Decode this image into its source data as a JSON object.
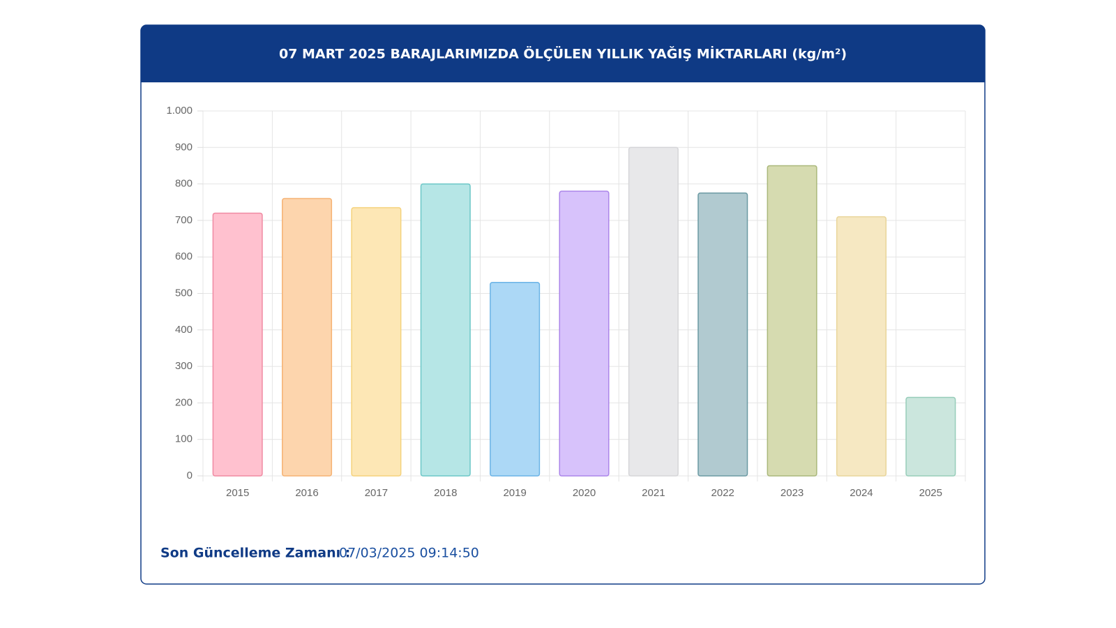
{
  "chart_data": {
    "type": "bar",
    "title": "07 MART 2025 BARAJLARIMIZDA ÖLÇÜLEN YILLIK YAĞIŞ MİKTARLARI (kg/m²)",
    "categories": [
      "2015",
      "2016",
      "2017",
      "2018",
      "2019",
      "2020",
      "2021",
      "2022",
      "2023",
      "2024",
      "2025"
    ],
    "values": [
      720,
      760,
      735,
      800,
      530,
      780,
      900,
      775,
      850,
      710,
      215
    ],
    "colors": [
      "#ffc1cf",
      "#fdd5ad",
      "#fde7b5",
      "#b6e6e6",
      "#acd8f6",
      "#d7c2fb",
      "#e8e8ea",
      "#b1cad0",
      "#d6dbb0",
      "#f6e8c2",
      "#cbe6dd"
    ],
    "border_colors": [
      "#f08aa2",
      "#f5b274",
      "#f5d27c",
      "#6cc7c7",
      "#6ab3e6",
      "#ab85ea",
      "#d5d5d8",
      "#6b9aa3",
      "#aab87b",
      "#e9d59a",
      "#97cdb9"
    ],
    "ylim": [
      0,
      1000
    ],
    "yticks": [
      0,
      100,
      200,
      300,
      400,
      500,
      600,
      700,
      800,
      900,
      {
        "value": 1000,
        "label": "1.000"
      }
    ],
    "grid": true
  },
  "footer": {
    "label": "Son Güncelleme Zamanı :",
    "value": "07/03/2025 09:14:50"
  }
}
